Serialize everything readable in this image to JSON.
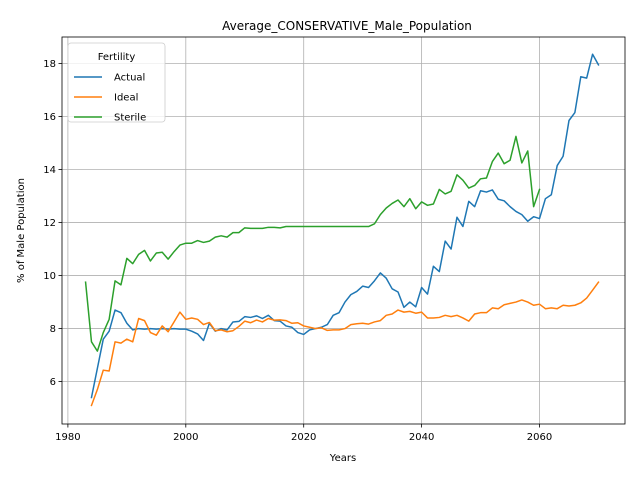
{
  "chart_data": {
    "type": "line",
    "title": "Average_CONSERVATIVE_Male_Population",
    "xlabel": "Years",
    "ylabel": "% of Male Population",
    "xlim": [
      1979,
      2074.5
    ],
    "ylim": [
      4.4,
      19.0
    ],
    "xticks": [
      1980,
      2000,
      2020,
      2040,
      2060
    ],
    "yticks": [
      6,
      8,
      10,
      12,
      14,
      16,
      18
    ],
    "grid": true,
    "legend": {
      "title": "Fertility",
      "position": "top-left"
    },
    "series": [
      {
        "name": "Actual",
        "color": "#1f77b4",
        "x": [
          1984,
          1985,
          1986,
          1987,
          1988,
          1989,
          1990,
          1991,
          1992,
          1993,
          1994,
          1995,
          1996,
          1997,
          1998,
          1999,
          2000,
          2001,
          2002,
          2003,
          2004,
          2005,
          2006,
          2007,
          2008,
          2009,
          2010,
          2011,
          2012,
          2013,
          2014,
          2015,
          2016,
          2017,
          2018,
          2019,
          2020,
          2021,
          2022,
          2023,
          2024,
          2025,
          2026,
          2027,
          2028,
          2029,
          2030,
          2031,
          2032,
          2033,
          2034,
          2035,
          2036,
          2037,
          2038,
          2039,
          2040,
          2041,
          2042,
          2043,
          2044,
          2045,
          2046,
          2047,
          2048,
          2049,
          2050,
          2051,
          2052,
          2053,
          2054,
          2055,
          2056,
          2057,
          2058,
          2059,
          2060,
          2061,
          2062,
          2063,
          2064,
          2065,
          2066,
          2067,
          2068,
          2069,
          2070
        ],
        "y": [
          5.4,
          6.5,
          7.6,
          7.9,
          8.7,
          8.6,
          8.2,
          7.95,
          8.0,
          7.98,
          8.0,
          7.98,
          8.0,
          7.98,
          8.0,
          7.98,
          7.98,
          7.9,
          7.8,
          7.55,
          8.2,
          7.9,
          8.0,
          7.95,
          8.25,
          8.27,
          8.45,
          8.42,
          8.48,
          8.38,
          8.5,
          8.3,
          8.28,
          8.1,
          8.05,
          7.85,
          7.78,
          7.95,
          8.0,
          8.05,
          8.15,
          8.5,
          8.6,
          9.0,
          9.28,
          9.4,
          9.6,
          9.55,
          9.8,
          10.1,
          9.9,
          9.5,
          9.38,
          8.8,
          9.0,
          8.82,
          9.55,
          9.3,
          10.35,
          10.15,
          11.3,
          11.0,
          12.2,
          11.85,
          12.8,
          12.6,
          13.2,
          13.15,
          13.23,
          12.88,
          12.82,
          12.6,
          12.42,
          12.3,
          12.05,
          12.22,
          12.15,
          12.9,
          13.05,
          14.15,
          14.5,
          15.85,
          16.15,
          17.5,
          17.45,
          18.35,
          17.95
        ]
      },
      {
        "name": "Ideal",
        "color": "#ff7f0e",
        "x": [
          1984,
          1985,
          1986,
          1987,
          1988,
          1989,
          1990,
          1991,
          1992,
          1993,
          1994,
          1995,
          1996,
          1997,
          1998,
          1999,
          2000,
          2001,
          2002,
          2003,
          2004,
          2005,
          2006,
          2007,
          2008,
          2009,
          2010,
          2011,
          2012,
          2013,
          2014,
          2015,
          2016,
          2017,
          2018,
          2019,
          2020,
          2021,
          2022,
          2023,
          2024,
          2025,
          2026,
          2027,
          2028,
          2029,
          2030,
          2031,
          2032,
          2033,
          2034,
          2035,
          2036,
          2037,
          2038,
          2039,
          2040,
          2041,
          2042,
          2043,
          2044,
          2045,
          2046,
          2047,
          2048,
          2049,
          2050,
          2051,
          2052,
          2053,
          2054,
          2055,
          2056,
          2057,
          2058,
          2059,
          2060,
          2061,
          2062,
          2063,
          2064,
          2065,
          2066,
          2067,
          2068,
          2069,
          2070
        ],
        "y": [
          5.1,
          5.7,
          6.43,
          6.4,
          7.5,
          7.45,
          7.6,
          7.5,
          8.38,
          8.3,
          7.85,
          7.75,
          8.1,
          7.88,
          8.25,
          8.62,
          8.35,
          8.4,
          8.35,
          8.15,
          8.23,
          7.92,
          7.95,
          7.88,
          7.92,
          8.08,
          8.28,
          8.22,
          8.32,
          8.25,
          8.38,
          8.32,
          8.33,
          8.3,
          8.2,
          8.22,
          8.1,
          8.05,
          8.0,
          8.03,
          7.93,
          7.95,
          7.95,
          8.0,
          8.15,
          8.18,
          8.2,
          8.17,
          8.25,
          8.3,
          8.5,
          8.55,
          8.7,
          8.62,
          8.65,
          8.58,
          8.62,
          8.4,
          8.4,
          8.42,
          8.5,
          8.45,
          8.5,
          8.4,
          8.28,
          8.55,
          8.6,
          8.6,
          8.78,
          8.75,
          8.9,
          8.95,
          9.0,
          9.08,
          9.0,
          8.88,
          8.92,
          8.75,
          8.78,
          8.75,
          8.88,
          8.85,
          8.88,
          8.97,
          9.15,
          9.45,
          9.75
        ]
      },
      {
        "name": "Sterile",
        "color": "#2ca02c",
        "x": [
          1983,
          1984,
          1985,
          1986,
          1987,
          1988,
          1989,
          1990,
          1991,
          1992,
          1993,
          1994,
          1995,
          1996,
          1997,
          1998,
          1999,
          2000,
          2001,
          2002,
          2003,
          2004,
          2005,
          2006,
          2007,
          2008,
          2009,
          2010,
          2011,
          2012,
          2013,
          2014,
          2015,
          2016,
          2017,
          2018,
          2019,
          2020,
          2021,
          2022,
          2023,
          2024,
          2025,
          2026,
          2027,
          2028,
          2029,
          2030,
          2031,
          2032,
          2033,
          2034,
          2035,
          2036,
          2037,
          2038,
          2039,
          2040,
          2041,
          2042,
          2043,
          2044,
          2045,
          2046,
          2047,
          2048,
          2049,
          2050,
          2051,
          2052,
          2053,
          2054,
          2055,
          2056,
          2057,
          2058,
          2059,
          2060
        ],
        "y": [
          9.75,
          7.5,
          7.15,
          7.85,
          8.35,
          9.8,
          9.65,
          10.65,
          10.45,
          10.8,
          10.95,
          10.55,
          10.85,
          10.88,
          10.62,
          10.9,
          11.15,
          11.22,
          11.22,
          11.32,
          11.25,
          11.3,
          11.45,
          11.5,
          11.45,
          11.62,
          11.62,
          11.8,
          11.78,
          11.78,
          11.78,
          11.82,
          11.82,
          11.8,
          11.85,
          11.85,
          11.85,
          11.85,
          11.85,
          11.85,
          11.85,
          11.85,
          11.85,
          11.85,
          11.85,
          11.85,
          11.85,
          11.85,
          11.85,
          11.95,
          12.3,
          12.55,
          12.72,
          12.85,
          12.6,
          12.9,
          12.52,
          12.78,
          12.65,
          12.7,
          13.25,
          13.08,
          13.18,
          13.8,
          13.6,
          13.3,
          13.4,
          13.65,
          13.68,
          14.3,
          14.62,
          14.22,
          14.35,
          15.25,
          14.25,
          14.7,
          12.6,
          13.25
        ]
      }
    ]
  }
}
